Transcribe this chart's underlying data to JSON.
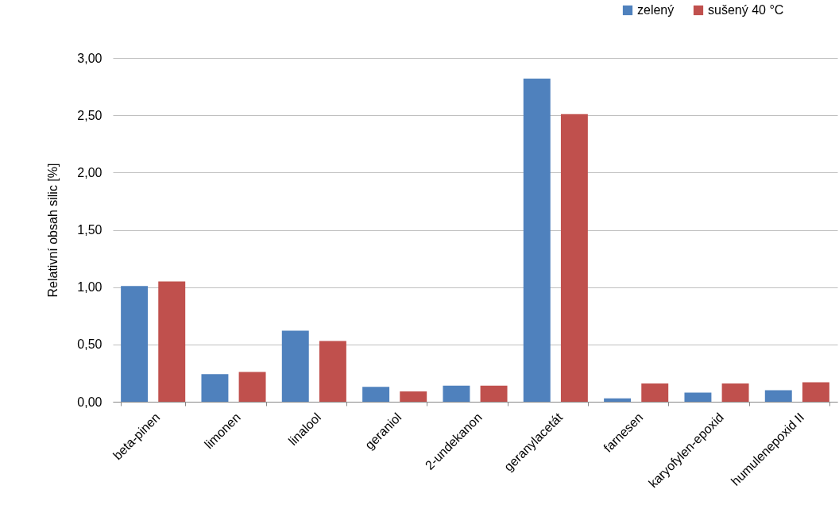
{
  "chart_data": {
    "type": "bar",
    "ylabel": "Relativní obsah silic [%]",
    "categories": [
      "beta-pinen",
      "limonen",
      "linalool",
      "geraniol",
      "2-undekanon",
      "geranylacetát",
      "farnesen",
      "karyofylen-epoxid",
      "humulenepoxid II"
    ],
    "series": [
      {
        "name": "zelený",
        "color": "#4f81bd",
        "values": [
          1.01,
          0.24,
          0.62,
          0.13,
          0.14,
          2.82,
          0.03,
          0.08,
          0.1
        ]
      },
      {
        "name": "sušený 40 °C",
        "color": "#c0504d",
        "values": [
          1.05,
          0.26,
          0.53,
          0.09,
          0.14,
          2.51,
          0.16,
          0.16,
          0.17
        ]
      }
    ],
    "ylim": [
      0,
      3
    ],
    "yticks": [
      {
        "value": 0,
        "label": "0,00"
      },
      {
        "value": 0.5,
        "label": "0,50"
      },
      {
        "value": 1,
        "label": "1,00"
      },
      {
        "value": 1.5,
        "label": "1,50"
      },
      {
        "value": 2,
        "label": "2,00"
      },
      {
        "value": 2.5,
        "label": "2,50"
      },
      {
        "value": 3,
        "label": "3,00"
      }
    ],
    "grid": "y",
    "legend": "top right"
  }
}
